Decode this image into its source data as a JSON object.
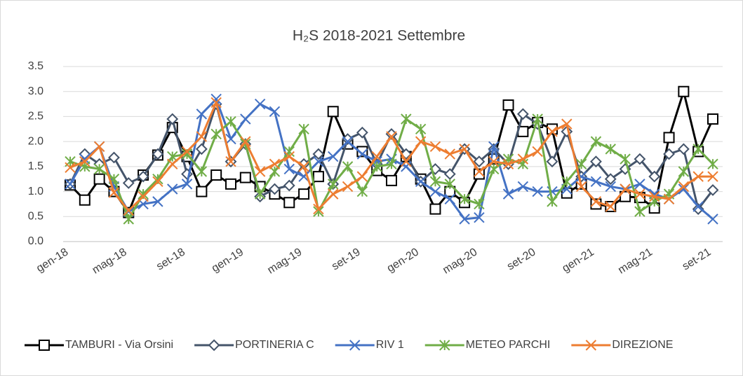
{
  "chart_data": {
    "type": "line",
    "title": "H₂S 2018-2021 Settembre",
    "categories": [
      "gen-18",
      null,
      null,
      null,
      "mag-18",
      null,
      null,
      null,
      "set-18",
      null,
      null,
      null,
      "gen-19",
      null,
      null,
      null,
      "mag-19",
      null,
      null,
      null,
      "set-19",
      null,
      null,
      null,
      "gen-20",
      null,
      null,
      null,
      "mag-20",
      null,
      null,
      null,
      "set-20",
      null,
      null,
      null,
      "gen-21",
      null,
      null,
      null,
      "mag-21",
      null,
      null,
      null,
      "set-21"
    ],
    "ylim": [
      0,
      3.5
    ],
    "yticks": [
      {
        "value": 0,
        "label": "0.0"
      },
      0.5,
      {
        "value": 1,
        "label": "1.0"
      },
      1.5,
      {
        "value": 2,
        "label": "2.0"
      },
      2.5,
      {
        "value": 3,
        "label": "3.0"
      },
      3.5
    ],
    "grid": true,
    "legend": "bottom",
    "series": [
      {
        "name": "TAMBURI - Via Orsini",
        "color": "#000000",
        "marker": "square",
        "values": [
          1.13,
          0.83,
          1.25,
          1.0,
          0.58,
          1.33,
          1.73,
          2.28,
          1.7,
          1.0,
          1.33,
          1.15,
          1.28,
          1.1,
          0.95,
          0.78,
          0.95,
          1.3,
          2.6,
          1.95,
          1.8,
          1.42,
          1.22,
          1.7,
          1.25,
          0.65,
          1.0,
          0.78,
          1.35,
          1.65,
          2.73,
          2.2,
          2.38,
          2.25,
          0.97,
          1.15,
          0.75,
          0.7,
          0.9,
          0.88,
          0.67,
          2.08,
          3.0,
          1.8,
          2.45
        ]
      },
      {
        "name": "PORTINERIA C",
        "color": "#44546a",
        "marker": "diamond",
        "values": [
          1.15,
          1.75,
          1.55,
          1.68,
          1.17,
          1.3,
          1.75,
          2.45,
          1.35,
          1.85,
          2.75,
          1.6,
          1.95,
          0.9,
          1.05,
          1.12,
          1.55,
          1.75,
          1.15,
          2.05,
          2.18,
          1.55,
          2.15,
          1.75,
          1.2,
          1.45,
          1.35,
          1.85,
          1.6,
          1.85,
          1.55,
          2.55,
          2.35,
          1.6,
          2.2,
          1.3,
          1.6,
          1.25,
          1.45,
          1.65,
          1.3,
          1.75,
          1.85,
          0.65,
          1.03
        ]
      },
      {
        "name": "RIV 1",
        "color": "#4472c4",
        "marker": "x",
        "values": [
          1.15,
          1.65,
          1.9,
          1.1,
          0.6,
          0.75,
          0.8,
          1.05,
          1.15,
          2.55,
          2.85,
          2.05,
          2.45,
          2.75,
          2.6,
          1.45,
          1.3,
          1.6,
          1.7,
          2.0,
          1.75,
          1.6,
          1.65,
          1.5,
          1.2,
          1.0,
          0.85,
          0.45,
          0.48,
          1.9,
          0.95,
          1.1,
          1.0,
          1.0,
          1.05,
          1.3,
          1.2,
          1.1,
          1.05,
          1.15,
          0.95,
          0.85,
          1.05,
          0.7,
          0.45
        ]
      },
      {
        "name": "METEO PARCHI",
        "color": "#70ad47",
        "marker": "star",
        "values": [
          1.6,
          1.5,
          1.45,
          1.25,
          0.45,
          0.95,
          1.25,
          1.7,
          1.75,
          1.4,
          2.15,
          2.4,
          1.95,
          0.95,
          1.4,
          1.8,
          2.25,
          0.6,
          1.15,
          1.5,
          1.0,
          1.5,
          1.55,
          2.45,
          2.25,
          1.2,
          1.15,
          0.85,
          0.75,
          1.45,
          1.65,
          1.55,
          2.45,
          0.8,
          1.2,
          1.55,
          2.0,
          1.85,
          1.65,
          0.6,
          0.8,
          0.95,
          1.4,
          1.85,
          1.55
        ]
      },
      {
        "name": "DIREZIONE",
        "color": "#ed7d31",
        "marker": "x",
        "values": [
          1.48,
          1.6,
          1.9,
          0.98,
          0.62,
          0.9,
          1.2,
          1.55,
          1.8,
          2.1,
          2.78,
          1.6,
          2.0,
          1.4,
          1.55,
          1.7,
          1.5,
          0.65,
          0.95,
          1.1,
          1.3,
          1.7,
          2.1,
          1.6,
          2.0,
          1.9,
          1.75,
          1.85,
          1.4,
          1.6,
          1.55,
          1.65,
          1.8,
          2.2,
          2.35,
          1.1,
          0.8,
          0.7,
          1.05,
          0.95,
          0.9,
          0.85,
          1.1,
          1.3,
          1.3
        ]
      }
    ]
  }
}
